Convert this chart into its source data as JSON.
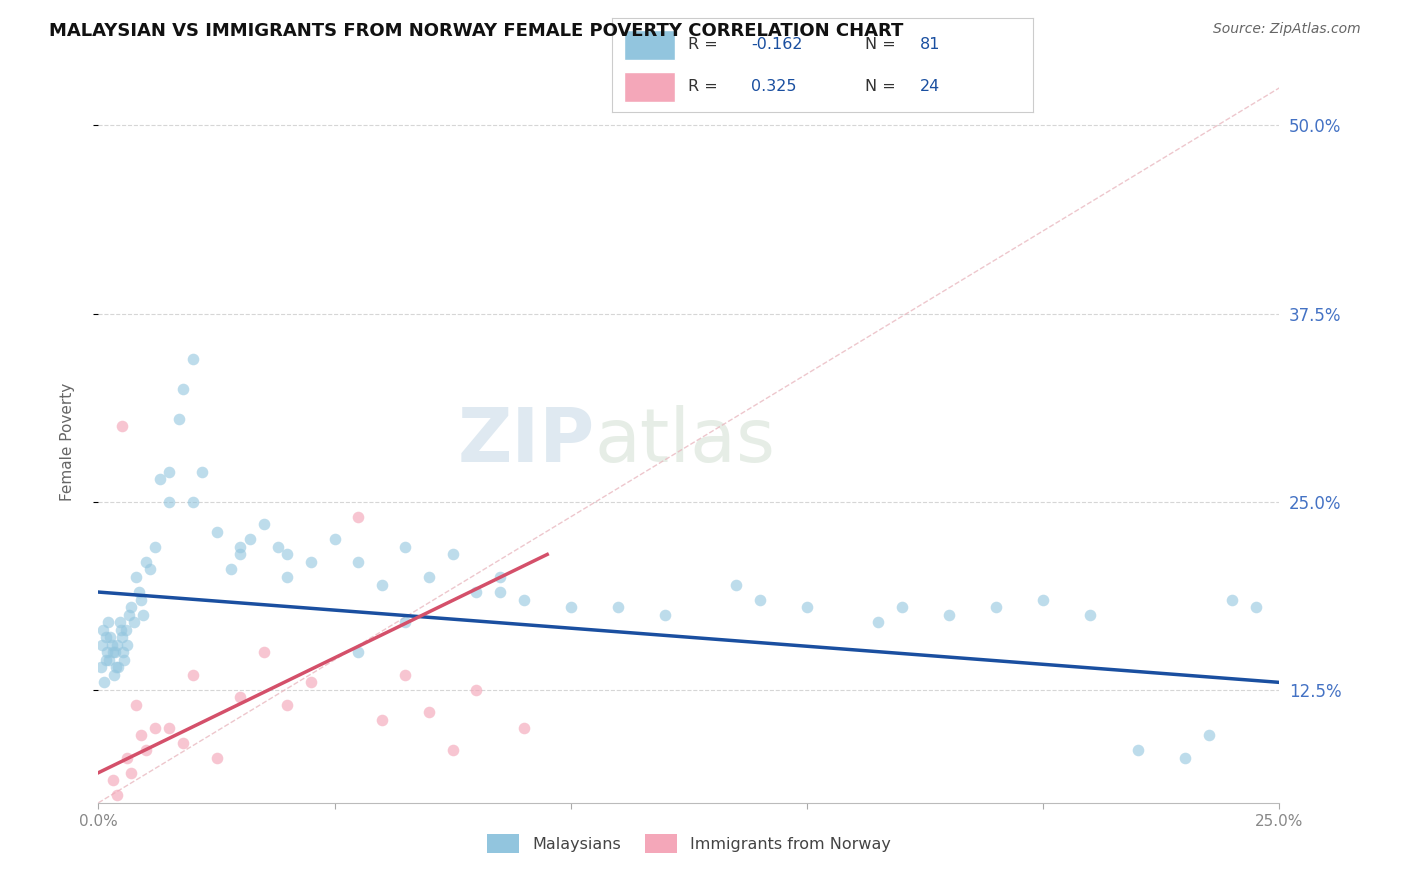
{
  "title": "MALAYSIAN VS IMMIGRANTS FROM NORWAY FEMALE POVERTY CORRELATION CHART",
  "source": "Source: ZipAtlas.com",
  "ylabel": "Female Poverty",
  "xlim": [
    0,
    25
  ],
  "ylim": [
    5,
    53
  ],
  "xtick_positions": [
    0,
    5,
    10,
    15,
    20,
    25
  ],
  "xticklabels": [
    "0.0%",
    "",
    "",
    "",
    "",
    "25.0%"
  ],
  "ytick_positions": [
    12.5,
    25.0,
    37.5,
    50.0
  ],
  "ytick_labels": [
    "12.5%",
    "25.0%",
    "37.5%",
    "50.0%"
  ],
  "r_malaysian": -0.162,
  "n_malaysian": 81,
  "r_norway": 0.325,
  "n_norway": 24,
  "blue_color": "#92c5de",
  "pink_color": "#f4a7b9",
  "blue_line_color": "#1a4fa0",
  "pink_line_color": "#d4506a",
  "diag_color": "#e8b4bc",
  "grid_color": "#cccccc",
  "title_color": "#111111",
  "source_color": "#666666",
  "ylabel_color": "#666666",
  "right_tick_color": "#4472c4",
  "legend_text_color": "#1a4fa0",
  "blue_line_x": [
    0,
    25
  ],
  "blue_line_y": [
    19.0,
    13.0
  ],
  "pink_line_x": [
    0,
    9.5
  ],
  "pink_line_y": [
    7.0,
    21.5
  ],
  "mal_x": [
    0.05,
    0.08,
    0.1,
    0.12,
    0.15,
    0.15,
    0.18,
    0.2,
    0.22,
    0.25,
    0.28,
    0.3,
    0.32,
    0.35,
    0.38,
    0.4,
    0.42,
    0.45,
    0.48,
    0.5,
    0.52,
    0.55,
    0.58,
    0.6,
    0.65,
    0.7,
    0.75,
    0.8,
    0.85,
    0.9,
    0.95,
    1.0,
    1.1,
    1.2,
    1.3,
    1.5,
    1.7,
    1.8,
    2.0,
    2.2,
    2.5,
    2.8,
    3.0,
    3.2,
    3.5,
    3.8,
    4.0,
    4.5,
    5.0,
    5.5,
    6.0,
    6.5,
    7.0,
    7.5,
    8.0,
    8.5,
    9.0,
    10.0,
    11.0,
    12.0,
    13.5,
    14.0,
    15.0,
    16.5,
    17.0,
    18.0,
    19.0,
    20.0,
    21.0,
    22.0,
    23.0,
    23.5,
    24.0,
    24.5,
    1.5,
    2.0,
    3.0,
    4.0,
    5.5,
    6.5,
    8.5
  ],
  "mal_y": [
    14.0,
    15.5,
    16.5,
    13.0,
    14.5,
    16.0,
    15.0,
    17.0,
    14.5,
    16.0,
    15.5,
    15.0,
    13.5,
    15.0,
    14.0,
    15.5,
    14.0,
    17.0,
    16.5,
    16.0,
    15.0,
    14.5,
    16.5,
    15.5,
    17.5,
    18.0,
    17.0,
    20.0,
    19.0,
    18.5,
    17.5,
    21.0,
    20.5,
    22.0,
    26.5,
    27.0,
    30.5,
    32.5,
    34.5,
    27.0,
    23.0,
    20.5,
    21.5,
    22.5,
    23.5,
    22.0,
    21.5,
    21.0,
    22.5,
    21.0,
    19.5,
    22.0,
    20.0,
    21.5,
    19.0,
    20.0,
    18.5,
    18.0,
    18.0,
    17.5,
    19.5,
    18.5,
    18.0,
    17.0,
    18.0,
    17.5,
    18.0,
    18.5,
    17.5,
    8.5,
    8.0,
    9.5,
    18.5,
    18.0,
    25.0,
    25.0,
    22.0,
    20.0,
    15.0,
    17.0,
    19.0
  ],
  "nor_x": [
    0.3,
    0.4,
    0.5,
    0.6,
    0.7,
    0.8,
    0.9,
    1.0,
    1.2,
    1.5,
    1.8,
    2.0,
    2.5,
    3.0,
    3.5,
    4.0,
    4.5,
    5.5,
    6.0,
    6.5,
    7.0,
    7.5,
    8.0,
    9.0
  ],
  "nor_y": [
    6.5,
    5.5,
    30.0,
    8.0,
    7.0,
    11.5,
    9.5,
    8.5,
    10.0,
    10.0,
    9.0,
    13.5,
    8.0,
    12.0,
    15.0,
    11.5,
    13.0,
    24.0,
    10.5,
    13.5,
    11.0,
    8.5,
    12.5,
    10.0
  ]
}
